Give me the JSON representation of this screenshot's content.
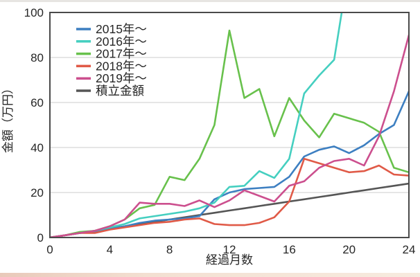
{
  "chart_data": {
    "type": "line",
    "title": "",
    "xlabel": "経過月数",
    "ylabel": "金額（万円）",
    "xlim": [
      0,
      24
    ],
    "ylim": [
      0,
      100
    ],
    "x_ticks": [
      0,
      4,
      8,
      12,
      16,
      20,
      24
    ],
    "y_ticks": [
      0,
      20,
      40,
      60,
      80,
      100
    ],
    "grid": "horizontal-only",
    "legend_position": "top-left-inside",
    "x": [
      0,
      1,
      2,
      3,
      4,
      5,
      6,
      7,
      8,
      9,
      10,
      11,
      12,
      13,
      14,
      15,
      16,
      17,
      18,
      19,
      20,
      21,
      22,
      23,
      24
    ],
    "series": [
      {
        "name": "2015年〜",
        "color": "#3d7fc1",
        "values": [
          0,
          1,
          2,
          2.5,
          4,
          5,
          6.5,
          7.5,
          8,
          8.5,
          9.5,
          17,
          20,
          21.5,
          22,
          22.5,
          27,
          36,
          39,
          40.5,
          37.5,
          41,
          46,
          50,
          65
        ]
      },
      {
        "name": "2016年〜",
        "color": "#45cfc0",
        "values": [
          0,
          1,
          2,
          3,
          4.5,
          6,
          8.5,
          9.5,
          10.5,
          11.5,
          13,
          15.5,
          22.5,
          23,
          29.5,
          26.5,
          35,
          64,
          72,
          79,
          null,
          null,
          null,
          null,
          null
        ],
        "clips_above_ymax_after_month": 19
      },
      {
        "name": "2017年〜",
        "color": "#68c14c",
        "values": [
          0,
          1,
          2.5,
          3,
          5,
          8,
          13,
          14.5,
          27,
          25.5,
          35,
          50,
          92,
          62,
          66,
          45,
          62,
          52,
          44.5,
          55,
          53,
          51,
          47,
          31,
          29
        ]
      },
      {
        "name": "2018年〜",
        "color": "#e05a47",
        "values": [
          0,
          1,
          2,
          2,
          3.5,
          4.5,
          5.5,
          6.5,
          7,
          8,
          8.5,
          6,
          5.5,
          5.5,
          6.5,
          9,
          16,
          35,
          33,
          31,
          29,
          29.5,
          32,
          28,
          27.5
        ]
      },
      {
        "name": "2019年〜",
        "color": "#cc4f8e",
        "values": [
          0,
          1,
          2,
          3,
          5,
          8,
          15.5,
          15,
          15,
          14,
          16.5,
          13.5,
          16.5,
          21,
          18.5,
          16,
          23,
          25,
          31,
          34,
          35,
          32,
          45,
          65,
          90
        ]
      },
      {
        "name": "積立金額",
        "color": "#555555",
        "values": [
          0,
          1,
          2,
          3,
          4,
          5,
          6,
          7,
          8,
          9,
          10,
          11,
          12,
          13,
          14,
          15,
          16,
          17,
          18,
          19,
          20,
          21,
          22,
          23,
          24
        ]
      }
    ]
  }
}
